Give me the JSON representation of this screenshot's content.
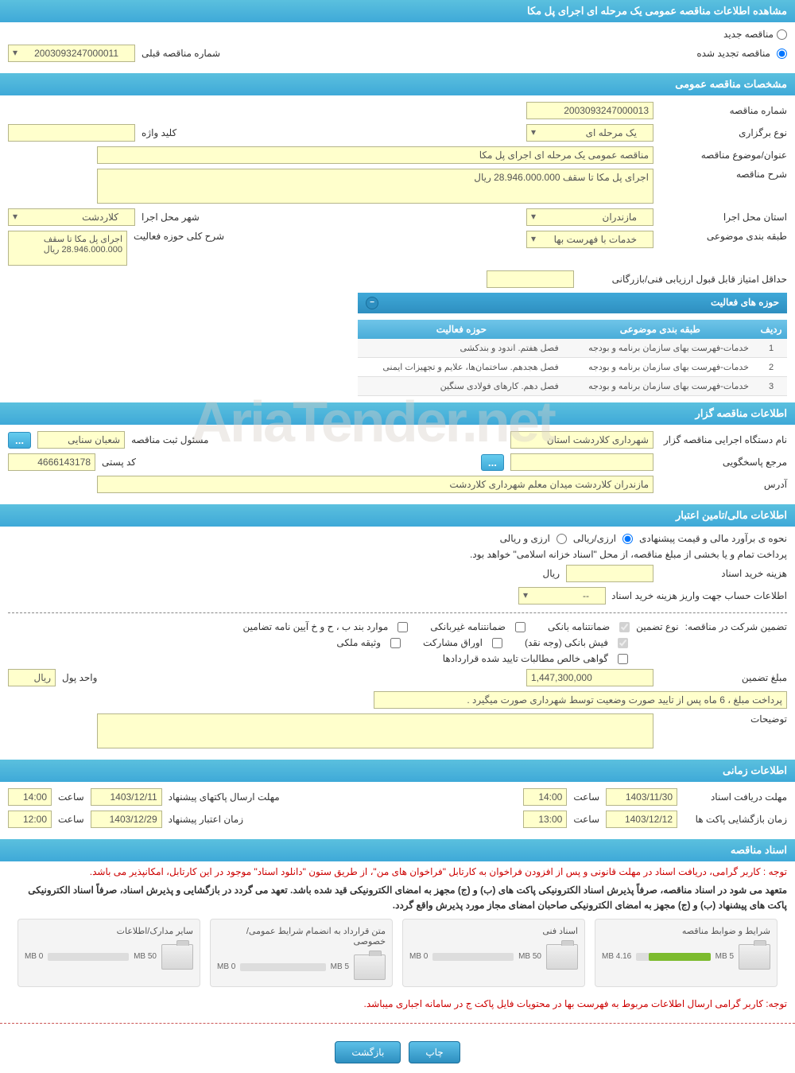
{
  "page_title": "مشاهده اطلاعات مناقصه عمومی یک مرحله ای اجرای پل مکا",
  "top": {
    "radio_new": "مناقصه جدید",
    "radio_renewed": "مناقصه تجدید شده",
    "prev_number_label": "شماره مناقصه قبلی",
    "prev_number": "2003093247000011"
  },
  "section1": {
    "header": "مشخصات مناقصه عمومی",
    "tender_number_label": "شماره مناقصه",
    "tender_number": "2003093247000013",
    "holding_type_label": "نوع برگزاری",
    "holding_type": "یک مرحله ای",
    "keyword_label": "کلید واژه",
    "keyword": "",
    "subject_label": "عنوان/موضوع مناقصه",
    "subject": "مناقصه عمومی یک مرحله ای اجرای پل مکا",
    "desc_label": "شرح مناقصه",
    "desc": "اجرای پل مکا تا سقف 28.946.000.000 ریال",
    "province_label": "استان محل اجرا",
    "province": "مازندران",
    "city_label": "شهر محل اجرا",
    "city": "کلاردشت",
    "category_label": "طبقه بندی موضوعی",
    "category": "خدمات با فهرست بها",
    "activity_desc_label": "شرح کلی حوزه فعالیت",
    "activity_desc": "اجرای پل مکا تا سقف 28.946.000.000 ریال",
    "min_score_label": "حداقل امتیاز قابل قبول ارزیابی فنی/بازرگانی",
    "min_score": "",
    "activities_header": "حوزه های فعالیت",
    "activities_table": {
      "headers": {
        "row": "ردیف",
        "category": "طبقه بندی موضوعی",
        "field": "حوزه فعالیت"
      },
      "rows": [
        {
          "n": "1",
          "cat": "خدمات-فهرست بهای سازمان برنامه و بودجه",
          "field": "فصل هفتم. اندود و بندکشی"
        },
        {
          "n": "2",
          "cat": "خدمات-فهرست بهای سازمان برنامه و بودجه",
          "field": "فصل هجدهم. ساختمان‌ها، علایم و تجهیزات ایمنی"
        },
        {
          "n": "3",
          "cat": "خدمات-فهرست بهای سازمان برنامه و بودجه",
          "field": "فصل دهم. کارهای فولادی سنگین"
        }
      ]
    }
  },
  "section2": {
    "header": "اطلاعات مناقصه گزار",
    "org_label": "نام دستگاه اجرایی مناقصه گزار",
    "org": "شهرداری کلاردشت استان",
    "officer_label": "مسئول ثبت مناقصه",
    "officer": "شعبان سنایی",
    "response_ref_label": "مرجع پاسخگویی",
    "response_ref": "",
    "postal_label": "کد پستی",
    "postal": "4666143178",
    "address_label": "آدرس",
    "address": "مازندران کلاردشت میدان معلم شهرداری کلاردشت",
    "dots": "..."
  },
  "section3": {
    "header": "اطلاعات مالی/تامین اعتبار",
    "estimate_label": "نحوه ی برآورد مالی و قیمت پیشنهادی",
    "opt_arzi_riyali": "ارزی/ریالی",
    "opt_arzi_v_riyali": "ارزی و ریالی",
    "payment_note": "پرداخت تمام و یا بخشی از مبلغ مناقصه، از محل \"اسناد خزانه اسلامی\" خواهد بود.",
    "doc_fee_label": "هزینه خرید اسناد",
    "doc_fee": "",
    "riyal": "ریال",
    "account_info_label": "اطلاعات حساب جهت واریز هزینه خرید اسناد",
    "account_info": "--",
    "guarantee_label": "تضمین شرکت در مناقصه:",
    "guarantee_type_label": "نوع تضمین",
    "chk_bank_guarantee": "ضمانتنامه بانکی",
    "chk_nonbank_guarantee": "ضمانتنامه غیربانکی",
    "chk_bond": "موارد بند ب ، ح و خ آیین نامه تضامین",
    "chk_bank_receipt": "فیش بانکی (وجه نقد)",
    "chk_partnership": "اوراق مشارکت",
    "chk_property": "وثیقه ملکی",
    "chk_net_receivables": "گواهی خالص مطالبات تایید شده قراردادها",
    "amount_label": "مبلغ تضمین",
    "amount": "1,447,300,000",
    "unit_label": "واحد پول",
    "unit": "ریال",
    "payment_terms": "پرداخت مبلغ ، 6 ماه پس از تایید صورت وضعیت توسط شهرداری صورت میگیرد .",
    "notes_label": "توضیحات"
  },
  "section4": {
    "header": "اطلاعات زمانی",
    "doc_deadline_label": "مهلت دریافت اسناد",
    "doc_deadline_date": "1403/11/30",
    "time_label": "ساعت",
    "doc_deadline_time": "14:00",
    "packet_send_label": "مهلت ارسال پاکتهای پیشنهاد",
    "packet_send_date": "1403/12/11",
    "packet_send_time": "14:00",
    "open_label": "زمان بازگشایی پاکت ها",
    "open_date": "1403/12/12",
    "open_time": "13:00",
    "validity_label": "زمان اعتبار پیشنهاد",
    "validity_date": "1403/12/29",
    "validity_time": "12:00"
  },
  "section5": {
    "header": "اسناد مناقصه",
    "note1": "توجه : کاربر گرامی، دریافت اسناد در مهلت قانونی و پس از افزودن فراخوان به کارتابل \"فراخوان های من\"، از طریق ستون \"دانلود اسناد\" موجود در این کارتابل، امکانپذیر می باشد.",
    "note2": "متعهد می شود در اسناد مناقصه، صرفاً پذیرش اسناد الکترونیکی پاکت های (ب) و (ج) مجهز به امضای الکترونیکی قید شده باشد. تعهد می گردد در بازگشایی و پذیرش اسناد، صرفاً اسناد الکترونیکی پاکت های پیشنهاد (ب) و (ج) مجهز به امضای الکترونیکی صاحبان امضای مجاز مورد پذیرش واقع گردد.",
    "files": [
      {
        "title": "شرایط و ضوابط مناقصه",
        "used": "4.16 MB",
        "total": "5 MB",
        "fill_pct": 83
      },
      {
        "title": "اسناد فنی",
        "used": "0 MB",
        "total": "50 MB",
        "fill_pct": 0
      },
      {
        "title": "متن قرارداد به انضمام شرایط عمومی/خصوصی",
        "used": "0 MB",
        "total": "5 MB",
        "fill_pct": 0
      },
      {
        "title": "سایر مدارک/اطلاعات",
        "used": "0 MB",
        "total": "50 MB",
        "fill_pct": 0
      }
    ],
    "red_note": "توجه: کاربر گرامی ارسال اطلاعات مربوط به فهرست بها در محتویات فایل پاکت ج در سامانه اجباری میباشد."
  },
  "buttons": {
    "print": "چاپ",
    "back": "بازگشت"
  },
  "watermark": "AriaTender.net"
}
